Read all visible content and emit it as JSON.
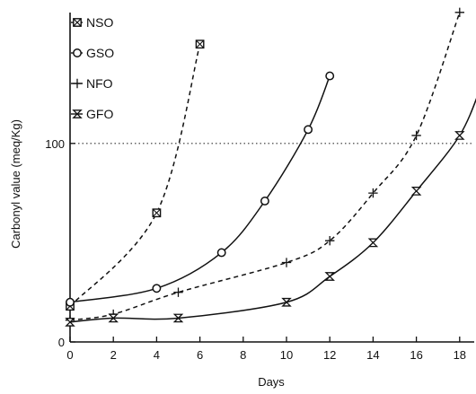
{
  "chart_data": {
    "type": "line",
    "title": "",
    "xlabel": "Days",
    "ylabel": "Carbonyl value (meq/Kg)",
    "xlim": [
      0,
      19
    ],
    "ylim": [
      0,
      165
    ],
    "x_ticks": [
      "0",
      "2",
      "4",
      "6",
      "8",
      "10",
      "12",
      "14",
      "16",
      "18"
    ],
    "y_ticks": [
      "0",
      "100"
    ],
    "reference_line": {
      "y": 100,
      "style": "dotted"
    },
    "grid": false,
    "legend_position": "top-left",
    "series": [
      {
        "name": "NSO",
        "marker": "boxed-x",
        "line_style": "dashed",
        "x": [
          0,
          4,
          6
        ],
        "y": [
          18,
          65,
          150
        ]
      },
      {
        "name": "GSO",
        "marker": "circle",
        "line_style": "solid",
        "x": [
          0,
          4,
          7,
          9,
          11,
          12
        ],
        "y": [
          20,
          27,
          45,
          71,
          107,
          134
        ]
      },
      {
        "name": "NFO",
        "marker": "plus",
        "line_style": "dashed",
        "x": [
          0,
          2,
          5,
          10,
          12,
          14,
          16,
          18
        ],
        "y": [
          11,
          14,
          25,
          40,
          51,
          75,
          104,
          166
        ]
      },
      {
        "name": "GFO",
        "marker": "hourglass",
        "line_style": "solid",
        "x": [
          0,
          2,
          5,
          10,
          12,
          14,
          16,
          18,
          19
        ],
        "y": [
          10,
          12,
          12,
          20,
          33,
          50,
          76,
          104,
          129
        ]
      }
    ]
  }
}
